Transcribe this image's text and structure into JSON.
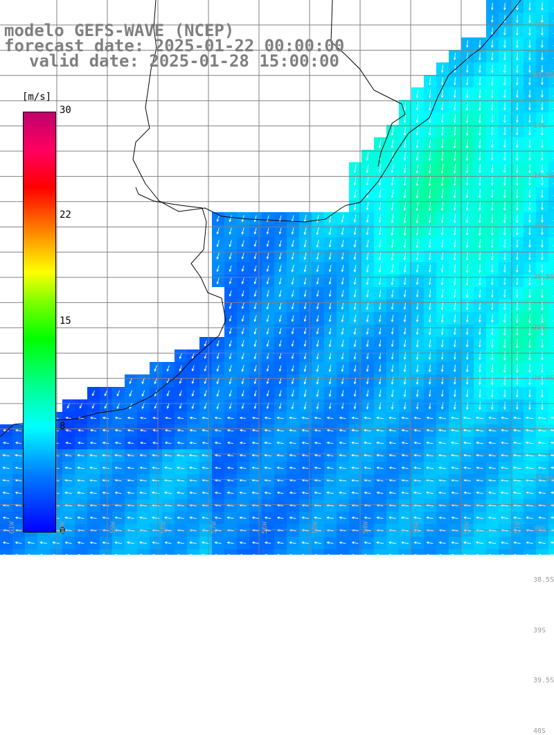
{
  "title": {
    "line1": "modelo GEFS-WAVE (NCEP)",
    "line2": "forecast date: 2025-01-22 00:00:00",
    "line3": "valid date: 2025-01-28 15:00:00"
  },
  "colorbar": {
    "unit": "[m/s]",
    "min": 0,
    "max": 30,
    "ticks": [
      "30",
      "22",
      "15",
      "8",
      "0"
    ],
    "tick_values": [
      30,
      22,
      15,
      8,
      0
    ]
  },
  "grid": {
    "lon_labels": [
      "61W",
      "60W",
      "59W",
      "58W",
      "57W",
      "56W",
      "55W",
      "54W",
      "53W",
      "52W",
      "51W"
    ],
    "lat_labels": [
      "33S",
      "33.5S",
      "34S",
      "34.5S",
      "35S",
      "35.5S",
      "36S",
      "36.5S",
      "37S",
      "37.5S",
      "38S",
      "38.5S",
      "39S",
      "39.5S",
      "40S"
    ]
  },
  "colors": {
    "land": "#ffffff",
    "coast": "#000000",
    "gridline": "#808080",
    "arrow": "#ffffff",
    "title": "#7f7f7f"
  }
}
